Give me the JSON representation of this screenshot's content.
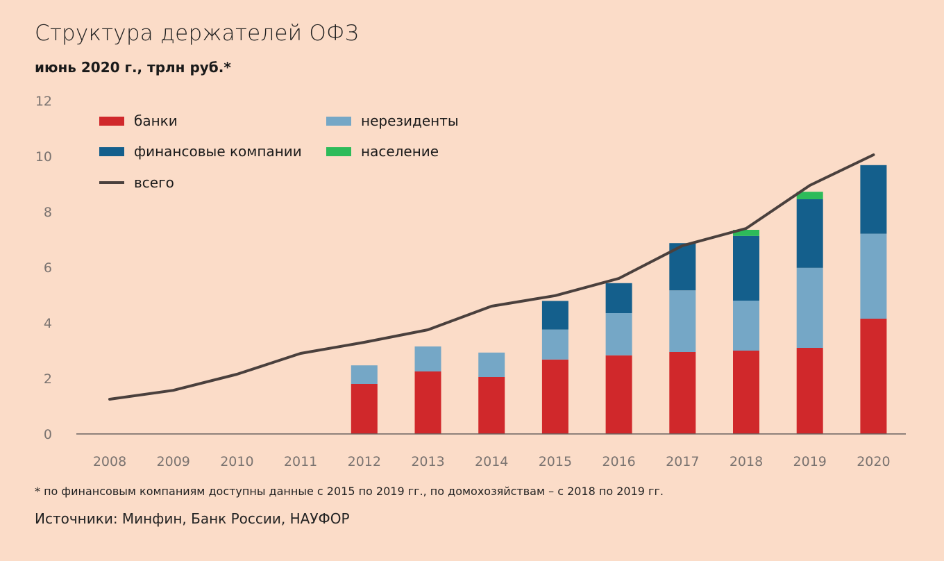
{
  "title": "Структура держателей ОФЗ",
  "subtitle": "июнь 2020 г., трлн руб.*",
  "footnote": "* по финансовым компаниям доступны данные с 2015 по 2019 гг., по домохозяйствам  – с 2018 по 2019 гг.",
  "sources": "Источники: Минфин, Банк России, НАУФОР",
  "chart_data": {
    "type": "bar",
    "stacked": true,
    "categories": [
      "2008",
      "2009",
      "2010",
      "2011",
      "2012",
      "2013",
      "2014",
      "2015",
      "2016",
      "2017",
      "2018",
      "2019",
      "2020"
    ],
    "ylim": [
      0,
      12
    ],
    "yticks": [
      0,
      2,
      4,
      6,
      8,
      10,
      12
    ],
    "legend_position": "top-left",
    "grid": false,
    "series": [
      {
        "name": "банки",
        "color": "#d0282b",
        "values": [
          null,
          null,
          null,
          null,
          1.8,
          2.25,
          2.05,
          2.68,
          2.83,
          2.95,
          3.0,
          3.1,
          4.15
        ]
      },
      {
        "name": "нерезиденты",
        "color": "#75a7c6",
        "values": [
          null,
          null,
          null,
          null,
          0.67,
          0.9,
          0.88,
          1.08,
          1.52,
          2.22,
          1.8,
          2.88,
          3.06
        ]
      },
      {
        "name": "финансовые компании",
        "color": "#145f8c",
        "values": [
          null,
          null,
          null,
          null,
          null,
          null,
          null,
          1.03,
          1.08,
          1.7,
          2.33,
          2.47,
          2.47
        ]
      },
      {
        "name": "население",
        "color": "#2dbb5a",
        "values": [
          null,
          null,
          null,
          null,
          null,
          null,
          null,
          null,
          null,
          null,
          0.22,
          0.27,
          null
        ]
      }
    ],
    "line": {
      "name": "всего",
      "color": "#4a403d",
      "values": [
        1.25,
        1.57,
        2.15,
        2.9,
        3.3,
        3.75,
        4.6,
        4.98,
        5.6,
        6.78,
        7.4,
        8.95,
        10.05
      ]
    }
  }
}
